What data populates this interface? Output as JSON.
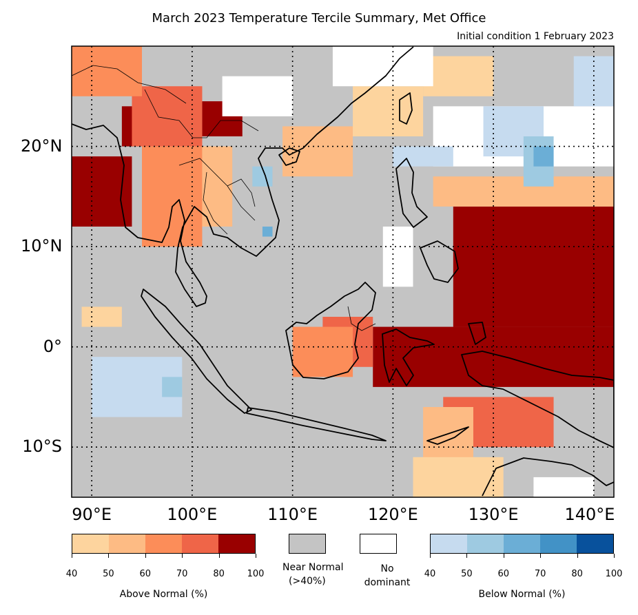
{
  "title": "March 2023 Temperature Tercile Summary, Met Office",
  "subtitle": "Initial condition 1 February 2023",
  "axes": {
    "lat_labels": [
      {
        "value": 20,
        "text": "20°N"
      },
      {
        "value": 10,
        "text": "10°N"
      },
      {
        "value": 0,
        "text": "0°"
      },
      {
        "value": -10,
        "text": "10°S"
      }
    ],
    "lon_labels": [
      {
        "value": 90,
        "text": "90°E"
      },
      {
        "value": 100,
        "text": "100°E"
      },
      {
        "value": 110,
        "text": "110°E"
      },
      {
        "value": 120,
        "text": "120°E"
      },
      {
        "value": 130,
        "text": "130°E"
      },
      {
        "value": 140,
        "text": "140°E"
      }
    ],
    "lon_range": [
      88,
      142
    ],
    "lat_range": [
      -15,
      30
    ],
    "gridlines": "dotted"
  },
  "legend": {
    "above": {
      "label": "Above Normal (%)",
      "ticks": [
        "40",
        "50",
        "60",
        "70",
        "80",
        "100"
      ],
      "colors": [
        "#fdd49e",
        "#fdbb84",
        "#fc8d59",
        "#ef6548",
        "#990000"
      ]
    },
    "near_normal": {
      "label_line1": "Near Normal",
      "label_line2": "(>40%)",
      "color": "#c4c4c4"
    },
    "no_dominant": {
      "label_line1": "No",
      "label_line2": "dominant",
      "color": "#ffffff"
    },
    "below": {
      "label": "Below Normal (%)",
      "ticks": [
        "40",
        "50",
        "60",
        "70",
        "80",
        "100"
      ],
      "colors": [
        "#c6dbef",
        "#9ecae1",
        "#6baed6",
        "#4292c6",
        "#08519c"
      ]
    }
  },
  "map_regions": [
    {
      "category": "above-80-100",
      "lon": [
        88,
        94
      ],
      "lat": [
        12,
        19
      ]
    },
    {
      "category": "above-80-100",
      "lon": [
        93,
        97
      ],
      "lat": [
        20,
        24
      ]
    },
    {
      "category": "above-80-100",
      "lon": [
        101,
        105
      ],
      "lat": [
        21,
        24.5
      ]
    },
    {
      "category": "above-80-100",
      "lon": [
        118,
        142
      ],
      "lat": [
        -4,
        2
      ]
    },
    {
      "category": "above-80-100",
      "lon": [
        126,
        142
      ],
      "lat": [
        2,
        14
      ]
    },
    {
      "category": "above-70-80",
      "lon": [
        94,
        101
      ],
      "lat": [
        20,
        26
      ]
    },
    {
      "category": "above-70-80",
      "lon": [
        113,
        118
      ],
      "lat": [
        -2,
        3
      ]
    },
    {
      "category": "above-70-80",
      "lon": [
        125,
        136
      ],
      "lat": [
        -10,
        -5
      ]
    },
    {
      "category": "above-60-70",
      "lon": [
        88,
        95
      ],
      "lat": [
        25,
        30
      ]
    },
    {
      "category": "above-60-70",
      "lon": [
        95,
        101
      ],
      "lat": [
        10,
        20
      ]
    },
    {
      "category": "above-60-70",
      "lon": [
        110,
        116
      ],
      "lat": [
        -3,
        2
      ]
    },
    {
      "category": "above-50-60",
      "lon": [
        101,
        104
      ],
      "lat": [
        12,
        20
      ]
    },
    {
      "category": "above-50-60",
      "lon": [
        109,
        116
      ],
      "lat": [
        17,
        22
      ]
    },
    {
      "category": "above-50-60",
      "lon": [
        124,
        142
      ],
      "lat": [
        14,
        17
      ]
    },
    {
      "category": "above-50-60",
      "lon": [
        123,
        128
      ],
      "lat": [
        -12,
        -6
      ]
    },
    {
      "category": "above-40-50",
      "lon": [
        89,
        93
      ],
      "lat": [
        2,
        4
      ]
    },
    {
      "category": "above-40-50",
      "lon": [
        116,
        123
      ],
      "lat": [
        21,
        26
      ]
    },
    {
      "category": "above-40-50",
      "lon": [
        123,
        130
      ],
      "lat": [
        25,
        29
      ]
    },
    {
      "category": "above-40-50",
      "lon": [
        122,
        131
      ],
      "lat": [
        -15,
        -11
      ]
    },
    {
      "category": "no-dominant",
      "lon": [
        103,
        110
      ],
      "lat": [
        23,
        27
      ]
    },
    {
      "category": "no-dominant",
      "lon": [
        114,
        124
      ],
      "lat": [
        26,
        30
      ]
    },
    {
      "category": "no-dominant",
      "lon": [
        124,
        142
      ],
      "lat": [
        18,
        24
      ]
    },
    {
      "category": "no-dominant",
      "lon": [
        119,
        122
      ],
      "lat": [
        6,
        12
      ]
    },
    {
      "category": "no-dominant",
      "lon": [
        134,
        140
      ],
      "lat": [
        -15,
        -13
      ]
    },
    {
      "category": "below-40-50",
      "lon": [
        90,
        99
      ],
      "lat": [
        -7,
        -1
      ]
    },
    {
      "category": "below-40-50",
      "lon": [
        120,
        126
      ],
      "lat": [
        18,
        20
      ]
    },
    {
      "category": "below-40-50",
      "lon": [
        129,
        135
      ],
      "lat": [
        19,
        24
      ]
    },
    {
      "category": "below-40-50",
      "lon": [
        138,
        142
      ],
      "lat": [
        24,
        29
      ]
    },
    {
      "category": "below-50-60",
      "lon": [
        106,
        108
      ],
      "lat": [
        16,
        18
      ]
    },
    {
      "category": "below-50-60",
      "lon": [
        133,
        136
      ],
      "lat": [
        16,
        21
      ]
    },
    {
      "category": "below-50-60",
      "lon": [
        97,
        99
      ],
      "lat": [
        -5,
        -3
      ]
    },
    {
      "category": "below-60-70",
      "lon": [
        134,
        136
      ],
      "lat": [
        18,
        20
      ]
    },
    {
      "category": "below-60-70",
      "lon": [
        107,
        108
      ],
      "lat": [
        11,
        12
      ]
    }
  ]
}
